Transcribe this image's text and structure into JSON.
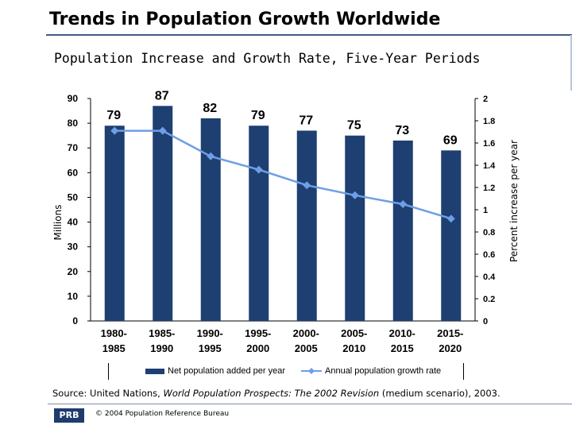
{
  "header": {
    "title": "Trends in Population Growth Worldwide",
    "subtitle": "Population Increase and Growth Rate, Five-Year Periods"
  },
  "chart_data": {
    "type": "bar",
    "categories": [
      "1980-1985",
      "1985-1990",
      "1990-1995",
      "1995-2000",
      "2000-2005",
      "2005-2010",
      "2010-2015",
      "2015-2020"
    ],
    "category_lines": [
      [
        "1980-",
        "1985"
      ],
      [
        "1985-",
        "1990"
      ],
      [
        "1990-",
        "1995"
      ],
      [
        "1995-",
        "2000"
      ],
      [
        "2000-",
        "2005"
      ],
      [
        "2005-",
        "2010"
      ],
      [
        "2010-",
        "2015"
      ],
      [
        "2015-",
        "2020"
      ]
    ],
    "series": [
      {
        "name": "Net population added per year",
        "type": "bar",
        "axis": "left",
        "values": [
          79,
          87,
          82,
          79,
          77,
          75,
          73,
          69
        ],
        "color": "#1e3f72"
      },
      {
        "name": "Annual population growth rate",
        "type": "line",
        "axis": "right",
        "values": [
          1.71,
          1.71,
          1.48,
          1.36,
          1.22,
          1.13,
          1.05,
          0.92
        ],
        "color": "#6e9ee6"
      }
    ],
    "ylabel": "Millions",
    "y2label": "Percent increase per year",
    "ylim": [
      0,
      90
    ],
    "y2lim": [
      0,
      2
    ],
    "yticks": [
      "0",
      "10",
      "20",
      "30",
      "40",
      "50",
      "60",
      "70",
      "80",
      "90"
    ],
    "y2ticks": [
      "0",
      "0.2",
      "0.4",
      "0.6",
      "0.8",
      "1",
      "1.2",
      "1.4",
      "1.6",
      "1.8",
      "2"
    ],
    "grid": false,
    "legend_position": "bottom"
  },
  "legend": {
    "bar_label": "Net population added per year",
    "line_label": "Annual population growth rate"
  },
  "footer": {
    "source_prefix": "Source: United Nations, ",
    "source_title": "World Population Prospects: The 2002 Revision",
    "source_suffix": " (medium scenario), 2003.",
    "logo_text": "PRB",
    "copyright": "© 2004 Population Reference Bureau"
  },
  "colors": {
    "bar": "#1e3f72",
    "line": "#6e9ee6",
    "title_rule": "#3e5e86"
  }
}
